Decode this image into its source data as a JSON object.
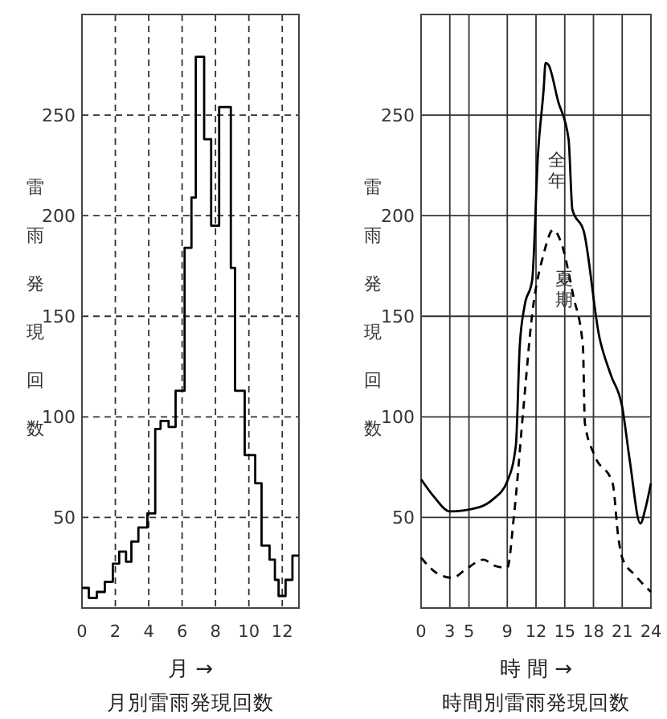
{
  "chart_data": [
    {
      "type": "step",
      "title": "月別雷雨発現回数",
      "xlabel": "月 →",
      "ylabel": "雷雨発現回数",
      "x": [
        0,
        0.41,
        0.89,
        1.37,
        1.85,
        2.23,
        2.64,
        2.96,
        3.38,
        3.92,
        4.39,
        4.71,
        5.19,
        5.61,
        6.15,
        6.56,
        6.82,
        7.32,
        7.74,
        8.22,
        8.92,
        9.17,
        9.75,
        10.38,
        10.76,
        11.24,
        11.56,
        11.78,
        12.2,
        12.61,
        13
      ],
      "values": [
        15,
        10,
        13,
        18,
        27,
        33,
        28,
        38,
        45,
        52,
        94,
        98,
        95,
        113,
        184,
        209,
        279,
        238,
        195,
        254,
        174,
        113,
        81,
        67,
        36,
        29,
        19,
        11,
        19,
        31,
        31
      ],
      "color": "#000000",
      "xlim": [
        0,
        13
      ],
      "ylim": [
        5,
        300
      ],
      "xticks": [
        0,
        2,
        4,
        6,
        8,
        10,
        12
      ],
      "yticks": [
        50,
        100,
        150,
        200,
        250
      ],
      "grid": true,
      "marker": "none"
    },
    {
      "type": "line",
      "title": "時間別雷雨発現回数",
      "xlabel": "時 間 →",
      "ylabel": "雷雨発現回数",
      "series": [
        {
          "name": "全年",
          "color": "#000000",
          "line_style": "solid",
          "x": [
            0,
            1.4,
            3,
            6,
            7.5,
            9,
            9.9,
            10.3,
            10.8,
            11.6,
            12.2,
            12.8,
            13.0,
            13.3,
            14.3,
            15.4,
            15.8,
            17.0,
            18.6,
            19.8,
            21,
            21.8,
            22.9,
            23.4,
            24
          ],
          "values": [
            69,
            60,
            53,
            55,
            59,
            68,
            86,
            135,
            155,
            168,
            230,
            263,
            276,
            275,
            257,
            238,
            203,
            192,
            140,
            121,
            105,
            78,
            47,
            54,
            67
          ]
        },
        {
          "name": "夏期",
          "color": "#000000",
          "line_style": "dashed",
          "x": [
            0,
            1.75,
            3.3,
            4.6,
            6.5,
            7.7,
            9,
            9.7,
            10.7,
            11.6,
            12.8,
            13.8,
            14.6,
            15.9,
            16.9,
            17.1,
            18.1,
            20.0,
            20.6,
            21,
            22.4,
            24
          ],
          "values": [
            30,
            22,
            20,
            24,
            29,
            26,
            25,
            51,
            105,
            151,
            181,
            193,
            187,
            160,
            135,
            97,
            81,
            67,
            40,
            30,
            21,
            13
          ]
        }
      ],
      "xlim": [
        0,
        24
      ],
      "ylim": [
        5,
        300
      ],
      "xticks": [
        0,
        3,
        5,
        9,
        12,
        15,
        18,
        21,
        24
      ],
      "yticks": [
        50,
        100,
        150,
        200,
        250
      ],
      "grid": true,
      "marker": "none"
    }
  ]
}
